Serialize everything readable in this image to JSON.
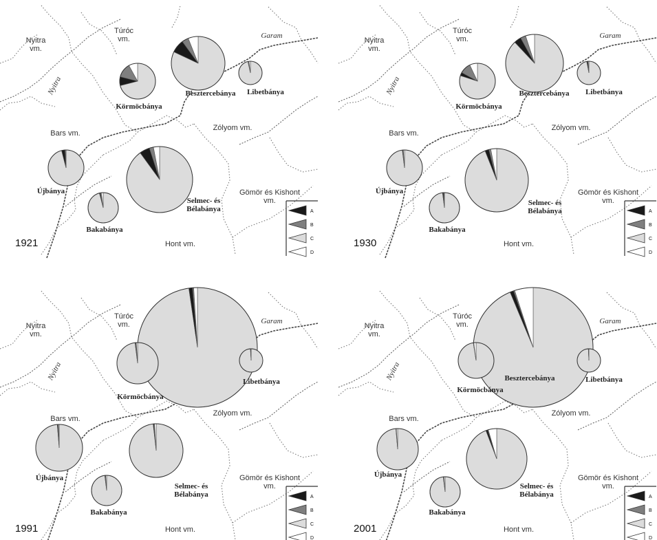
{
  "legend_letters": [
    "A",
    "B",
    "C",
    "D"
  ],
  "colors": {
    "A": "#1a1a1a",
    "B": "#7f7f7f",
    "C": "#dcdcdc",
    "D": "#ffffff",
    "border": "#555555"
  },
  "county_labels": {
    "nyitra": [
      "Nyitra",
      "vm."
    ],
    "turoc": [
      "Túróc",
      "vm."
    ],
    "bars": "Bars vm.",
    "zolyom": "Zólyom vm.",
    "gomor": [
      "Gömör és Kishont",
      "vm."
    ],
    "hont": "Hont vm."
  },
  "river_labels": {
    "garam": "Garam",
    "nyitra": "Nyitra"
  },
  "town_labels": {
    "kormocbanya": "Körmöcbánya",
    "besztercebanya": "Besztercebánya",
    "libetbanya": "Libetbánya",
    "ujbanya": "Újbánya",
    "bakabanya": "Bakabánya",
    "selmec": [
      "Selmec- és",
      "Bélabánya"
    ]
  },
  "panels": [
    {
      "year": "1921",
      "towns": [
        {
          "town": "Körmöcbánya",
          "shares": {
            "A": 8,
            "B": 13,
            "C": 71,
            "D": 8
          }
        },
        {
          "town": "Besztercebánya",
          "shares": {
            "A": 8,
            "B": 4,
            "C": 82,
            "D": 6
          }
        },
        {
          "town": "Libetbánya",
          "shares": {
            "A": 0.5,
            "B": 1,
            "C": 96.5,
            "D": 2
          }
        },
        {
          "town": "Újbánya",
          "shares": {
            "A": 3,
            "B": 0.5,
            "C": 96,
            "D": 0.5
          }
        },
        {
          "town": "Bakabánya",
          "shares": {
            "A": 1,
            "B": 1,
            "C": 96,
            "D": 2
          }
        },
        {
          "town": "Selmec- és Bélabánya",
          "shares": {
            "A": 5,
            "B": 2,
            "C": 90,
            "D": 3
          }
        }
      ]
    },
    {
      "year": "1930",
      "towns": [
        {
          "town": "Körmöcbánya",
          "shares": {
            "A": 3,
            "B": 10,
            "C": 80,
            "D": 7
          }
        },
        {
          "town": "Besztercebánya",
          "shares": {
            "A": 4,
            "B": 3,
            "C": 88,
            "D": 5
          }
        },
        {
          "town": "Libetbánya",
          "shares": {
            "A": 1.5,
            "B": 0.5,
            "C": 97,
            "D": 1
          }
        },
        {
          "town": "Újbánya",
          "shares": {
            "A": 0.5,
            "B": 0.5,
            "C": 98,
            "D": 1
          }
        },
        {
          "town": "Bakabánya",
          "shares": {
            "A": 1,
            "B": 0.5,
            "C": 98,
            "D": 0.5
          }
        },
        {
          "town": "Selmec- és Bélabánya",
          "shares": {
            "A": 2,
            "B": 1,
            "C": 94,
            "D": 3
          }
        }
      ]
    },
    {
      "year": "1991",
      "towns": [
        {
          "town": "Körmöcbánya",
          "shares": {
            "A": 0.5,
            "B": 0.5,
            "C": 98,
            "D": 1
          }
        },
        {
          "town": "Besztercebánya",
          "shares": {
            "A": 1,
            "B": 0.3,
            "C": 97.7,
            "D": 1
          }
        },
        {
          "town": "Libetbánya",
          "shares": {
            "A": 0.3,
            "B": 0.2,
            "C": 99,
            "D": 0.5
          }
        },
        {
          "town": "Újbánya",
          "shares": {
            "A": 0.5,
            "B": 0.3,
            "C": 98.7,
            "D": 0.5
          }
        },
        {
          "town": "Bakabánya",
          "shares": {
            "A": 0.5,
            "B": 0.5,
            "C": 98,
            "D": 1
          }
        },
        {
          "town": "Selmec- és Bélabánya",
          "shares": {
            "A": 0.5,
            "B": 0.3,
            "C": 98.2,
            "D": 1
          }
        }
      ]
    },
    {
      "year": "2001",
      "towns": [
        {
          "town": "Körmöcbánya",
          "shares": {
            "A": 0.3,
            "B": 0.2,
            "C": 97.5,
            "D": 2
          }
        },
        {
          "town": "Besztercebánya",
          "shares": {
            "A": 1,
            "B": 0.3,
            "C": 93.7,
            "D": 5
          }
        },
        {
          "town": "Libetbánya",
          "shares": {
            "A": 0.2,
            "B": 0.1,
            "C": 99.2,
            "D": 0.5
          }
        },
        {
          "town": "Újbánya",
          "shares": {
            "A": 0.2,
            "B": 0.2,
            "C": 98.6,
            "D": 1
          }
        },
        {
          "town": "Bakabánya",
          "shares": {
            "A": 0.5,
            "B": 0.3,
            "C": 98,
            "D": 1.2
          }
        },
        {
          "town": "Selmec- és Bélabánya",
          "shares": {
            "A": 1,
            "B": 0.3,
            "C": 94.2,
            "D": 4.5
          }
        }
      ]
    }
  ]
}
